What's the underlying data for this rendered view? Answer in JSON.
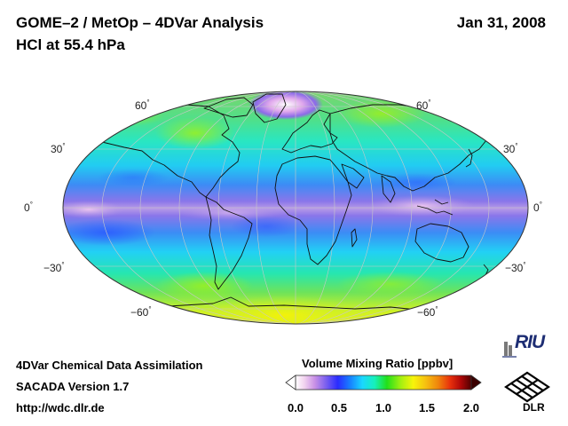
{
  "header": {
    "title": "GOME–2 / MetOp – 4DVar Analysis",
    "subtitle": "HCl at 55.4 hPa",
    "date": "Jan 31, 2008"
  },
  "map": {
    "projection": "Mollweide",
    "latitude_labels_left": [
      "60",
      "30",
      "0",
      "−30",
      "−60"
    ],
    "latitude_labels_right": [
      "60",
      "30",
      "0",
      "−30",
      "−60"
    ],
    "degree_symbol": "°"
  },
  "colorbar": {
    "title": "Volume Mixing Ratio [ppbv]",
    "ticks": [
      "0.0",
      "0.5",
      "1.0",
      "1.5",
      "2.0"
    ],
    "range": [
      0.0,
      2.0
    ],
    "colors": [
      "#ffffff",
      "#f2d3ef",
      "#c890e6",
      "#7e62ee",
      "#2a2cff",
      "#1780ff",
      "#1ad7ff",
      "#16f0bb",
      "#22e01a",
      "#a5f010",
      "#f7f40a",
      "#f6c010",
      "#f0860c",
      "#e8300c",
      "#b00808",
      "#500000"
    ]
  },
  "footer": {
    "line1": "4DVar Chemical Data Assimilation",
    "line2": "SACADA Version 1.7",
    "line3": "http://wdc.dlr.de"
  },
  "logos": {
    "riu_text": "RIU",
    "dlr_text": "DLR"
  }
}
